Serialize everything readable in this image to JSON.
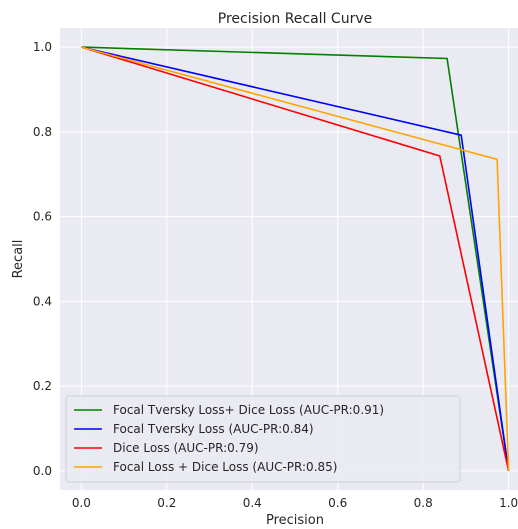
{
  "chart_data": {
    "type": "line",
    "title": "Precision Recall Curve",
    "xlabel": "Precision",
    "ylabel": "Recall",
    "xlim": [
      -0.05,
      1.05
    ],
    "ylim": [
      -0.045,
      1.045
    ],
    "xticks": [
      "0.0",
      "0.2",
      "0.4",
      "0.6",
      "0.8",
      "1.0"
    ],
    "yticks": [
      "0.0",
      "0.2",
      "0.4",
      "0.6",
      "0.8",
      "1.0"
    ],
    "grid": true,
    "legend_position": "lower-left",
    "series": [
      {
        "name": "Focal Tversky Loss+ Dice Loss (AUC-PR:0.91)",
        "color": "#008000",
        "x": [
          0.0,
          0.856,
          1.0
        ],
        "y": [
          1.0,
          0.973,
          0.0
        ]
      },
      {
        "name": "Focal Tversky Loss (AUC-PR:0.84)",
        "color": "#0000ff",
        "x": [
          0.0,
          0.889,
          1.0
        ],
        "y": [
          1.0,
          0.792,
          0.0
        ]
      },
      {
        "name": "Dice Loss (AUC-PR:0.79)",
        "color": "#ff0000",
        "x": [
          0.0,
          0.839,
          1.0
        ],
        "y": [
          1.0,
          0.743,
          0.0
        ]
      },
      {
        "name": "Focal Loss + Dice Loss (AUC-PR:0.85)",
        "color": "#ffa500",
        "x": [
          0.0,
          0.973,
          1.0
        ],
        "y": [
          1.0,
          0.735,
          0.0
        ]
      }
    ]
  }
}
